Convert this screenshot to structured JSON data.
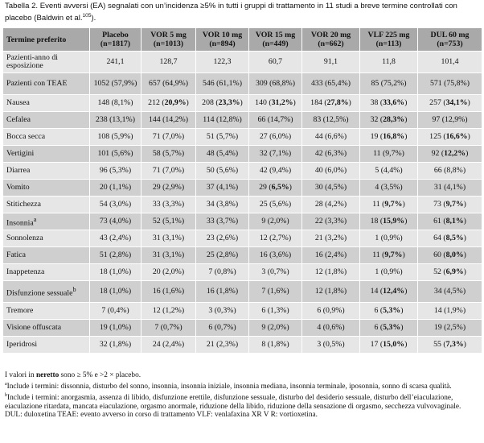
{
  "caption": {
    "text": "Tabella 2. Eventi avversi (EA) segnalati con un’incidenza ≥5% in tutti i gruppi di trattamento in 11 studi a breve termine controllati con placebo (Baldwin et al.",
    "ref": "105",
    "tail": ")."
  },
  "table": {
    "headers": [
      {
        "line1": "Termine preferito",
        "line2": ""
      },
      {
        "line1": "Placebo",
        "line2": "(n=1817)"
      },
      {
        "line1": "VOR 5 mg",
        "line2": "(n=1013)"
      },
      {
        "line1": "VOR 10 mg",
        "line2": "(n=894)"
      },
      {
        "line1": "VOR 15 mg",
        "line2": "(n=449)"
      },
      {
        "line1": "VOR 20 mg",
        "line2": "(n=662)"
      },
      {
        "line1": "VLF 225 mg",
        "line2": "(n=113)"
      },
      {
        "line1": "DUL 60 mg",
        "line2": "(n=753)"
      }
    ],
    "rows": [
      {
        "label": "Pazienti-anno di esposizione",
        "tall": true,
        "cells": [
          [
            "241,1",
            ""
          ],
          [
            "128,7",
            ""
          ],
          [
            "122,3",
            ""
          ],
          [
            "60,7",
            ""
          ],
          [
            "91,1",
            ""
          ],
          [
            "11,8",
            ""
          ],
          [
            "101,4",
            ""
          ]
        ]
      },
      {
        "label": "Pazienti con TEAE",
        "tall": true,
        "cells": [
          [
            "1052 (57,9%)",
            ""
          ],
          [
            "657 (64,9%)",
            ""
          ],
          [
            "546 (61,1%)",
            ""
          ],
          [
            "309 (68,8%)",
            ""
          ],
          [
            "433 (65,4%)",
            ""
          ],
          [
            "85 (75,2%)",
            ""
          ],
          [
            "571 (75,8%)",
            ""
          ]
        ]
      },
      {
        "label": "Nausea",
        "cells": [
          [
            "148 (8,1%)",
            ""
          ],
          [
            "212 (",
            "20,9%"
          ],
          [
            "208 (",
            "23,3%"
          ],
          [
            "140 (",
            "31,2%"
          ],
          [
            "184 (",
            "27,8%"
          ],
          [
            "38 (",
            "33,6%"
          ],
          [
            "257 (",
            "34,1%"
          ]
        ]
      },
      {
        "label": "Cefalea",
        "cells": [
          [
            "238 (13,1%)",
            ""
          ],
          [
            "144 (14,2%)",
            ""
          ],
          [
            "114 (12,8%)",
            ""
          ],
          [
            "66 (14,7%)",
            ""
          ],
          [
            "83 (12,5%)",
            ""
          ],
          [
            "32 (",
            "28,3%"
          ],
          [
            "97 (12,9%)",
            ""
          ]
        ]
      },
      {
        "label": "Bocca secca",
        "cells": [
          [
            "108 (5,9%)",
            ""
          ],
          [
            "71 (7,0%)",
            ""
          ],
          [
            "51 (5,7%)",
            ""
          ],
          [
            "27 (6,0%)",
            ""
          ],
          [
            "44 (6,6%)",
            ""
          ],
          [
            "19 (",
            "16,8%"
          ],
          [
            "125 (",
            "16,6%"
          ]
        ]
      },
      {
        "label": "Vertigini",
        "cells": [
          [
            "101 (5,6%)",
            ""
          ],
          [
            "58 (5,7%)",
            ""
          ],
          [
            "48 (5,4%)",
            ""
          ],
          [
            "32 (7,1%)",
            ""
          ],
          [
            "42 (6,3%)",
            ""
          ],
          [
            "11 (9,7%)",
            ""
          ],
          [
            "92 (",
            "12,2%"
          ]
        ]
      },
      {
        "label": "Diarrea",
        "cells": [
          [
            "96 (5,3%)",
            ""
          ],
          [
            "71 (7,0%)",
            ""
          ],
          [
            "50 (5,6%)",
            ""
          ],
          [
            "42 (9,4%)",
            ""
          ],
          [
            "40 (6,0%)",
            ""
          ],
          [
            "5 (4,4%)",
            ""
          ],
          [
            "66 (8,8%)",
            ""
          ]
        ]
      },
      {
        "label": "Vomito",
        "cells": [
          [
            "20 (1,1%)",
            ""
          ],
          [
            "29 (2,9%)",
            ""
          ],
          [
            "37 (4,1%)",
            ""
          ],
          [
            "29 (",
            "6,5%"
          ],
          [
            "30 (4,5%)",
            ""
          ],
          [
            "4 (3,5%)",
            ""
          ],
          [
            "31 (4,1%)",
            ""
          ]
        ]
      },
      {
        "label": "Stitichezza",
        "cells": [
          [
            "54 (3,0%)",
            ""
          ],
          [
            "33 (3,3%)",
            ""
          ],
          [
            "34 (3,8%)",
            ""
          ],
          [
            "25 (5,6%)",
            ""
          ],
          [
            "28 (4,2%)",
            ""
          ],
          [
            "11 (",
            "9,7%"
          ],
          [
            "73 (",
            "9,7%"
          ]
        ]
      },
      {
        "label": "Insonnia",
        "sup": "a",
        "cells": [
          [
            "73 (4,0%)",
            ""
          ],
          [
            "52 (5,1%)",
            ""
          ],
          [
            "33 (3,7%)",
            ""
          ],
          [
            "9 (2,0%)",
            ""
          ],
          [
            "22 (3,3%)",
            ""
          ],
          [
            "18 (",
            "15,9%"
          ],
          [
            "61 (",
            "8,1%"
          ]
        ]
      },
      {
        "label": "Sonnolenza",
        "cells": [
          [
            "43 (2,4%)",
            ""
          ],
          [
            "31 (3,1%)",
            ""
          ],
          [
            "23 (2,6%)",
            ""
          ],
          [
            "12 (2,7%)",
            ""
          ],
          [
            "21 (3,2%)",
            ""
          ],
          [
            "1 (0,9%)",
            ""
          ],
          [
            "64 (",
            "8,5%"
          ]
        ]
      },
      {
        "label": "Fatica",
        "cells": [
          [
            "51 (2,8%)",
            ""
          ],
          [
            "31 (3,1%)",
            ""
          ],
          [
            "25 (2,8%)",
            ""
          ],
          [
            "16 (3,6%)",
            ""
          ],
          [
            "16 (2,4%)",
            ""
          ],
          [
            "11 (",
            "9,7%"
          ],
          [
            "60 (",
            "8,0%"
          ]
        ]
      },
      {
        "label": "Inappetenza",
        "cells": [
          [
            "18 (1,0%)",
            ""
          ],
          [
            "20 (2,0%)",
            ""
          ],
          [
            "7 (0,8%)",
            ""
          ],
          [
            "3 (0,7%)",
            ""
          ],
          [
            "12 (1,8%)",
            ""
          ],
          [
            "1 (0,9%)",
            ""
          ],
          [
            "52 (",
            "6,9%"
          ]
        ]
      },
      {
        "label": "Disfunzione sessuale",
        "sup": "b",
        "tall": true,
        "cells": [
          [
            "18 (1,0%)",
            ""
          ],
          [
            "16 (1,6%)",
            ""
          ],
          [
            "16 (1,8%)",
            ""
          ],
          [
            "7 (1,6%)",
            ""
          ],
          [
            "12 (1,8%)",
            ""
          ],
          [
            "14 (",
            "12,4%"
          ],
          [
            "34 (4,5%)",
            ""
          ]
        ]
      },
      {
        "label": "Tremore",
        "cells": [
          [
            "7 (0,4%)",
            ""
          ],
          [
            "12 (1,2%)",
            ""
          ],
          [
            "3 (0,3%)",
            ""
          ],
          [
            "6 (1,3%)",
            ""
          ],
          [
            "6 (0,9%)",
            ""
          ],
          [
            "6 (",
            "5,3%"
          ],
          [
            "14 (1,9%)",
            ""
          ]
        ]
      },
      {
        "label": "Visione offuscata",
        "cells": [
          [
            "19 (1,0%)",
            ""
          ],
          [
            "7 (0,7%)",
            ""
          ],
          [
            "6 (0,7%)",
            ""
          ],
          [
            "9 (2,0%)",
            ""
          ],
          [
            "4 (0,6%)",
            ""
          ],
          [
            "6 (",
            "5,3%"
          ],
          [
            "19 (2,5%)",
            ""
          ]
        ]
      },
      {
        "label": "Iperidrosi",
        "cells": [
          [
            "32 (1,8%)",
            ""
          ],
          [
            "24 (2,4%)",
            ""
          ],
          [
            "21 (2,3%)",
            ""
          ],
          [
            "8 (1,8%)",
            ""
          ],
          [
            "3 (0,5%)",
            ""
          ],
          [
            "17 (",
            "15,0%"
          ],
          [
            "55 (",
            "7,3%"
          ]
        ]
      }
    ]
  },
  "notes": {
    "n1_pre": "I valori in ",
    "n1_bold": "neretto",
    "n1_post": " sono ≥ 5% e >2 × placebo.",
    "n2_sup": "a",
    "n2": "Include i termini: dissonnia, disturbo del sonno, insonnia, insonnia iniziale, insonnia mediana, insonnia terminale, iposonnia, sonno di scarsa qualità.",
    "n3_sup": "b",
    "n3": "Include i termini: anorgasmia, assenza di libido, disfunzione erettile, disfunzione sessuale, disturbo del desiderio sessuale, disturbo dell’eiaculazione, eiaculazione ritardata, mancata eiaculazione, orgasmo anormale, riduzione della libido, riduzione della sensazione di orgasmo, secchezza vulvovaginale.",
    "n4": "DUL: duloxetina TEAE: evento avverso in corso di trattamento VLF: venlafaxina XR V R: vortioxetina."
  }
}
